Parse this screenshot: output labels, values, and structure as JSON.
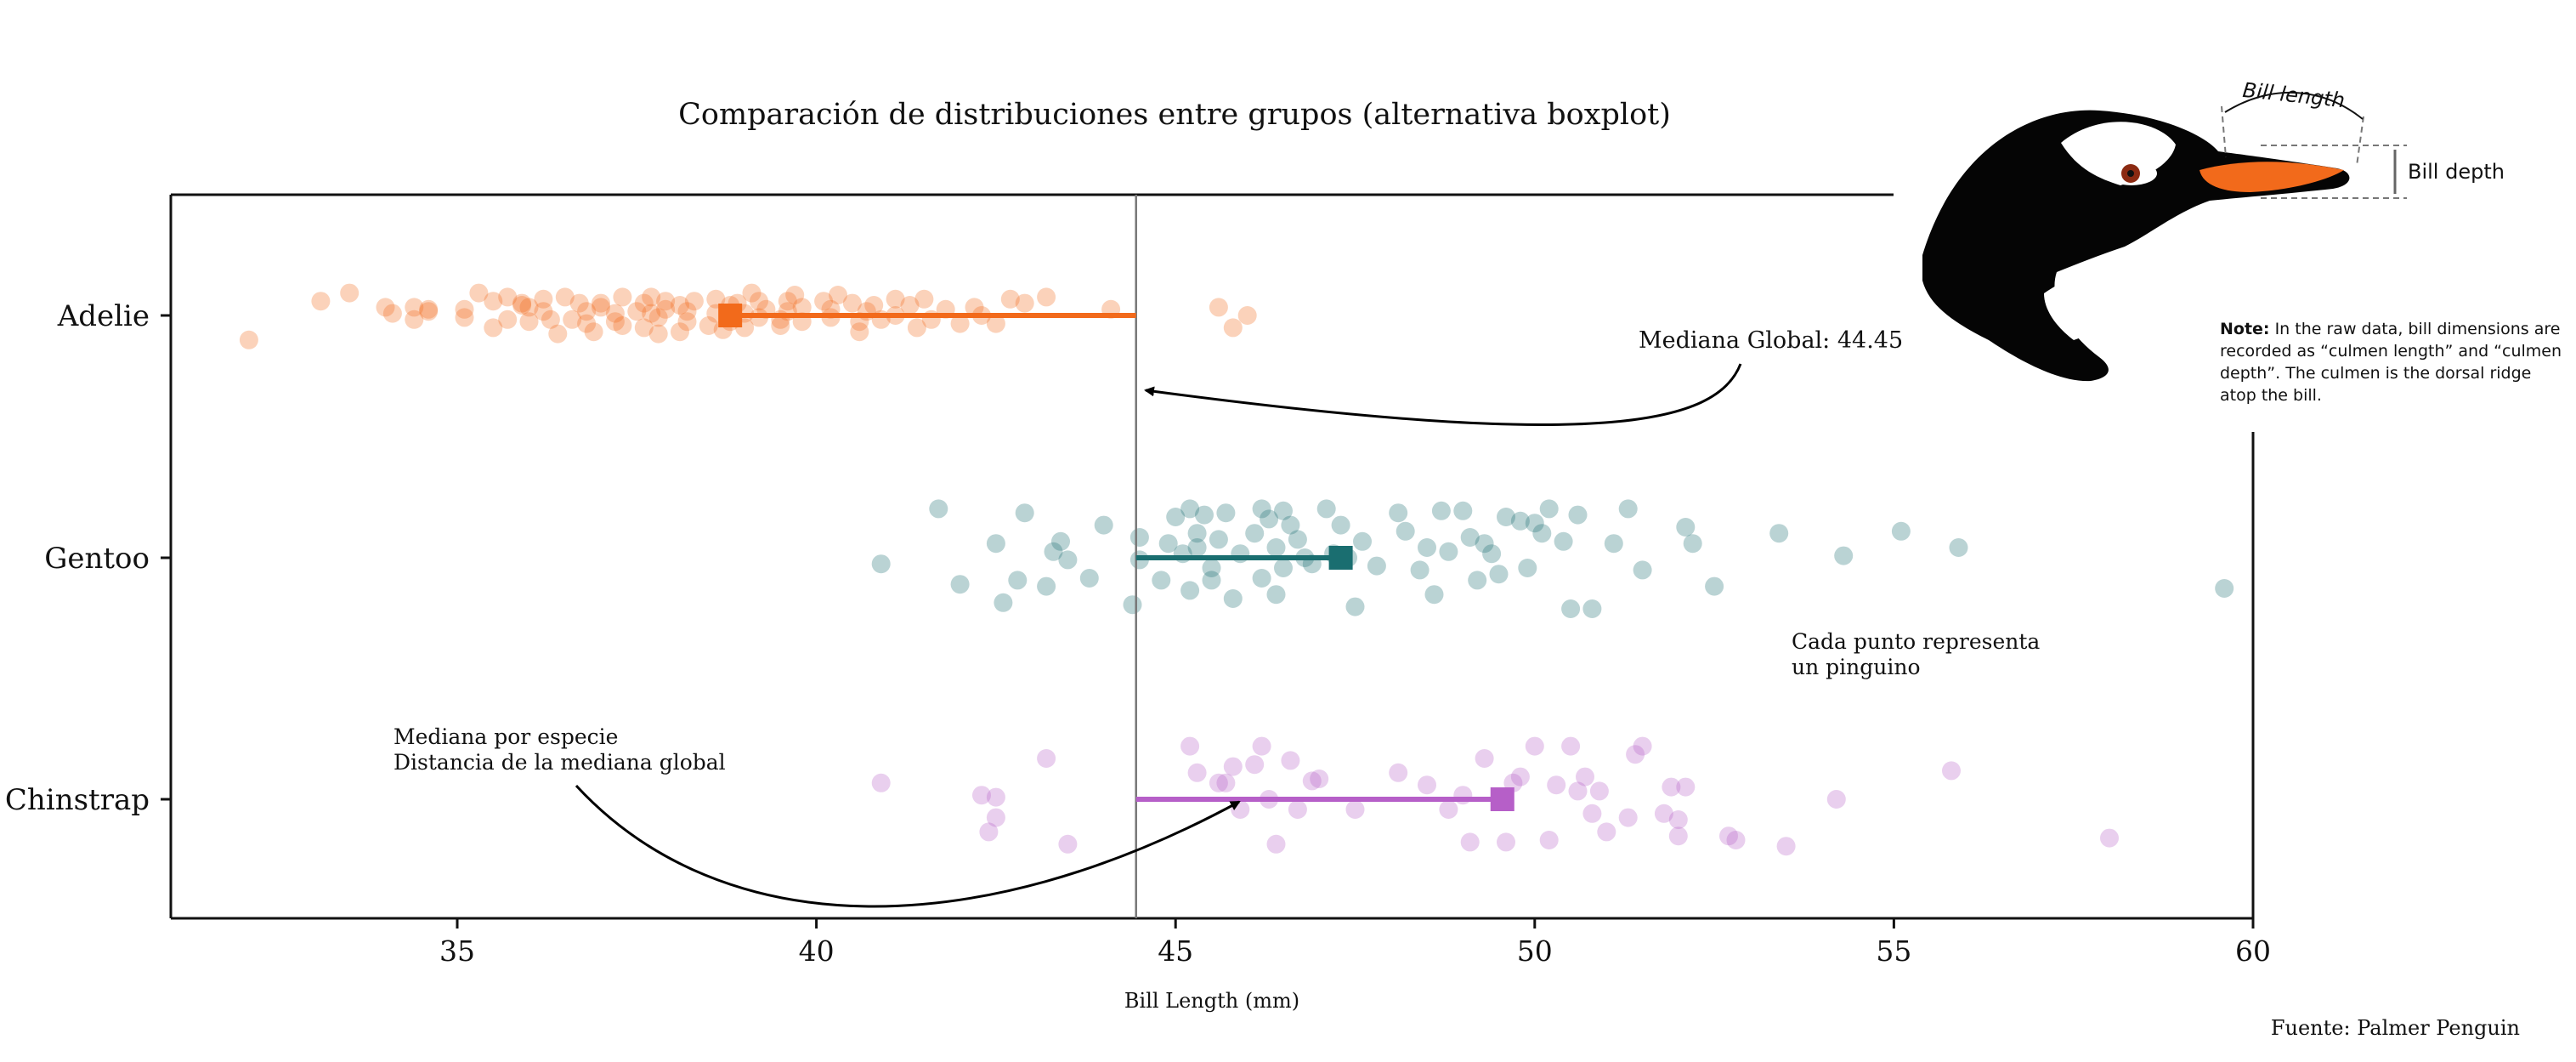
{
  "chart_data": {
    "type": "scatter",
    "title": "Comparación de distribuciones entre grupos (alternativa boxplot)",
    "xlabel": "Bill Length (mm)",
    "ylabel": "",
    "xlim": [
      31,
      60
    ],
    "xticks": [
      35,
      40,
      45,
      50,
      55,
      60
    ],
    "categories": [
      "Adelie",
      "Gentoo",
      "Chinstrap"
    ],
    "global_median": 44.45,
    "grid": false,
    "series": [
      {
        "name": "Adelie",
        "color": "#f26a1b",
        "median": 38.8,
        "x": [
          32.1,
          33.1,
          33.5,
          34.0,
          34.1,
          34.4,
          34.4,
          34.6,
          34.6,
          35.1,
          35.1,
          35.3,
          35.5,
          35.5,
          35.7,
          35.7,
          35.9,
          35.9,
          36.0,
          36.0,
          36.2,
          36.2,
          36.3,
          36.4,
          36.5,
          36.6,
          36.7,
          36.8,
          36.8,
          36.9,
          37.0,
          37.0,
          37.2,
          37.2,
          37.3,
          37.3,
          37.5,
          37.6,
          37.6,
          37.7,
          37.7,
          37.8,
          37.8,
          37.9,
          37.9,
          38.1,
          38.1,
          38.2,
          38.2,
          38.3,
          38.5,
          38.6,
          38.6,
          38.7,
          38.8,
          38.8,
          38.9,
          39.0,
          39.0,
          39.1,
          39.2,
          39.2,
          39.3,
          39.5,
          39.5,
          39.6,
          39.6,
          39.7,
          39.8,
          39.8,
          40.1,
          40.2,
          40.2,
          40.3,
          40.5,
          40.6,
          40.6,
          40.7,
          40.8,
          40.9,
          41.1,
          41.1,
          41.3,
          41.4,
          41.5,
          41.6,
          41.8,
          42.0,
          42.2,
          42.3,
          42.5,
          42.7,
          42.9,
          43.2,
          44.1,
          45.6,
          45.8,
          46.0
        ],
        "y": [
          -0.12,
          0.07,
          0.11,
          0.04,
          0.01,
          -0.02,
          0.04,
          0.03,
          0.02,
          -0.01,
          0.03,
          0.11,
          -0.06,
          0.07,
          0.09,
          -0.02,
          0.06,
          0.05,
          0.04,
          -0.03,
          0.02,
          0.08,
          -0.02,
          -0.09,
          0.09,
          -0.02,
          0.06,
          0.02,
          -0.04,
          -0.08,
          0.04,
          0.06,
          0.01,
          -0.03,
          0.09,
          -0.05,
          0.02,
          -0.06,
          0.06,
          0.01,
          0.09,
          -0.01,
          -0.09,
          0.03,
          0.07,
          -0.08,
          0.05,
          -0.03,
          0.02,
          0.07,
          -0.05,
          0.01,
          0.08,
          -0.07,
          -0.03,
          0.05,
          0.06,
          0.01,
          -0.06,
          0.11,
          0.07,
          -0.01,
          0.03,
          -0.02,
          -0.05,
          0.07,
          0.02,
          0.1,
          -0.03,
          0.04,
          0.07,
          0.03,
          -0.01,
          0.1,
          0.06,
          -0.08,
          -0.03,
          0.02,
          0.05,
          -0.02,
          0.08,
          0.0,
          0.05,
          -0.06,
          0.08,
          -0.02,
          0.03,
          -0.04,
          0.04,
          0.0,
          -0.04,
          0.08,
          0.06,
          0.09,
          0.03,
          0.04,
          -0.06,
          0.0
        ]
      },
      {
        "name": "Gentoo",
        "color": "#1a6e70",
        "median": 47.3,
        "x": [
          40.9,
          41.7,
          42.0,
          42.5,
          42.6,
          42.8,
          42.9,
          43.2,
          43.3,
          43.4,
          43.5,
          43.8,
          44.0,
          44.4,
          44.5,
          44.5,
          44.8,
          44.9,
          45.0,
          45.1,
          45.2,
          45.2,
          45.3,
          45.3,
          45.4,
          45.5,
          45.5,
          45.6,
          45.7,
          45.8,
          45.9,
          46.1,
          46.2,
          46.2,
          46.3,
          46.4,
          46.4,
          46.5,
          46.5,
          46.6,
          46.7,
          46.8,
          46.9,
          47.1,
          47.2,
          47.3,
          47.4,
          47.5,
          47.6,
          47.8,
          48.1,
          48.2,
          48.4,
          48.5,
          48.6,
          48.7,
          48.8,
          49.0,
          49.1,
          49.2,
          49.3,
          49.4,
          49.5,
          49.6,
          49.8,
          49.9,
          50.0,
          50.1,
          50.2,
          50.4,
          50.5,
          50.6,
          50.8,
          51.1,
          51.3,
          51.5,
          52.1,
          52.2,
          52.5,
          53.4,
          54.3,
          55.1,
          55.9,
          59.6
        ],
        "y": [
          -0.03,
          0.24,
          -0.13,
          0.07,
          -0.22,
          -0.11,
          0.22,
          -0.14,
          0.03,
          0.08,
          -0.01,
          -0.1,
          0.16,
          -0.23,
          0.1,
          -0.01,
          -0.11,
          0.07,
          0.2,
          0.02,
          0.24,
          -0.16,
          0.12,
          0.05,
          0.21,
          -0.05,
          -0.11,
          0.09,
          0.22,
          -0.2,
          0.02,
          0.12,
          0.24,
          -0.1,
          0.19,
          0.05,
          -0.18,
          0.23,
          -0.05,
          0.16,
          0.09,
          0.0,
          -0.03,
          0.24,
          0.02,
          0.16,
          0.0,
          -0.24,
          0.08,
          -0.04,
          0.22,
          0.13,
          -0.06,
          0.05,
          -0.18,
          0.23,
          0.03,
          0.23,
          0.1,
          -0.11,
          0.07,
          0.02,
          -0.08,
          0.2,
          0.18,
          -0.05,
          0.17,
          0.12,
          0.24,
          0.08,
          -0.25,
          0.21,
          -0.25,
          0.07,
          0.24,
          -0.06,
          0.15,
          0.07,
          -0.14,
          0.12,
          0.01,
          0.13,
          0.05,
          -0.15
        ]
      },
      {
        "name": "Chinstrap",
        "color": "#b65fc8",
        "median": 49.55,
        "x": [
          40.9,
          42.3,
          42.5,
          42.5,
          42.4,
          43.2,
          43.5,
          45.2,
          45.3,
          45.6,
          45.7,
          45.8,
          45.9,
          46.1,
          46.2,
          46.3,
          46.4,
          46.6,
          46.7,
          46.9,
          47.0,
          47.5,
          48.1,
          48.5,
          48.8,
          49.0,
          49.1,
          49.3,
          49.6,
          49.7,
          49.8,
          50.0,
          50.2,
          50.3,
          50.5,
          50.6,
          50.7,
          50.8,
          50.9,
          51.0,
          51.3,
          51.4,
          51.5,
          51.8,
          51.9,
          52.0,
          52.0,
          52.1,
          52.7,
          52.8,
          53.5,
          54.2,
          55.8,
          58.0
        ],
        "y": [
          0.08,
          0.02,
          0.01,
          -0.09,
          -0.16,
          0.2,
          -0.22,
          0.26,
          0.13,
          0.08,
          0.08,
          0.16,
          -0.05,
          0.17,
          0.26,
          0.0,
          -0.22,
          0.19,
          -0.05,
          0.09,
          0.1,
          -0.05,
          0.13,
          0.07,
          -0.05,
          0.02,
          -0.21,
          0.2,
          -0.21,
          0.08,
          0.11,
          0.26,
          -0.2,
          0.07,
          0.26,
          0.04,
          0.11,
          -0.07,
          0.04,
          -0.16,
          -0.09,
          0.22,
          0.26,
          -0.07,
          0.06,
          -0.18,
          -0.1,
          0.06,
          -0.18,
          -0.2,
          -0.23,
          0.0,
          0.14,
          -0.19
        ]
      }
    ],
    "annotations": {
      "global_median_label": "Mediana Global: 44.45",
      "per_species_label_1": "Mediana por especie",
      "per_species_label_2": "Distancia de la mediana global",
      "point_label_1": "Cada punto representa",
      "point_label_2": "un pinguino"
    },
    "source": "Fuente: Palmer Penguin",
    "inset": {
      "bill_length_label": "Bill length",
      "bill_depth_label": "Bill depth",
      "note_title": "Note:",
      "note_text": "In the raw data, bill dimensions are recorded as “culmen length” and “culmen depth”. The culmen is the dorsal ridge atop the bill."
    }
  }
}
